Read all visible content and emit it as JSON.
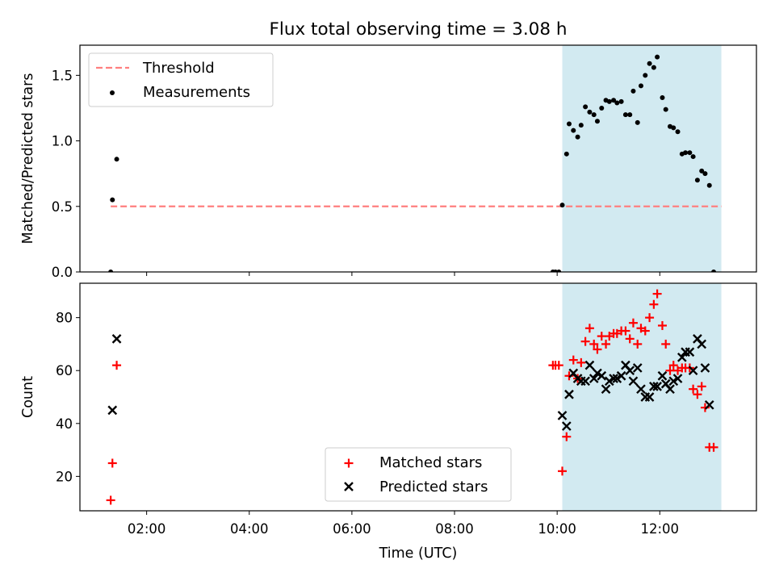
{
  "figure": {
    "title": "Flux total observing time = 3.08 h",
    "colors": {
      "threshold": "#ff7f7f",
      "measurement": "#000000",
      "matched": "#ff0000",
      "predicted": "#000000",
      "shade": "#add8e6"
    }
  },
  "chart_data": [
    {
      "type": "scatter",
      "ylabel": "Matched/Predicted stars",
      "xlabel": "",
      "ylim": [
        0,
        1.73
      ],
      "xlim": [
        "00:42",
        "13:53"
      ],
      "yticks": [
        "0.0",
        "0.5",
        "1.0",
        "1.5"
      ],
      "shaded_interval": [
        "10:06",
        "13:12"
      ],
      "legend_placement": "top-left",
      "threshold": {
        "name": "Threshold",
        "value": 0.5,
        "x": [
          "01:18",
          "13:12"
        ],
        "style": "dashed"
      },
      "series": [
        {
          "name": "Measurements",
          "points": [
            [
              "01:18",
              0.0
            ],
            [
              "01:20",
              0.55
            ],
            [
              "01:25",
              0.86
            ],
            [
              "09:55",
              0.0
            ],
            [
              "09:58",
              0.0
            ],
            [
              "10:02",
              0.0
            ],
            [
              "10:06",
              0.51
            ],
            [
              "10:11",
              0.9
            ],
            [
              "10:14",
              1.13
            ],
            [
              "10:19",
              1.08
            ],
            [
              "10:24",
              1.03
            ],
            [
              "10:28",
              1.12
            ],
            [
              "10:33",
              1.26
            ],
            [
              "10:38",
              1.22
            ],
            [
              "10:43",
              1.2
            ],
            [
              "10:47",
              1.15
            ],
            [
              "10:52",
              1.25
            ],
            [
              "10:57",
              1.31
            ],
            [
              "11:01",
              1.3
            ],
            [
              "11:06",
              1.31
            ],
            [
              "11:10",
              1.29
            ],
            [
              "11:15",
              1.3
            ],
            [
              "11:20",
              1.2
            ],
            [
              "11:25",
              1.2
            ],
            [
              "11:29",
              1.38
            ],
            [
              "11:34",
              1.14
            ],
            [
              "11:38",
              1.42
            ],
            [
              "11:43",
              1.5
            ],
            [
              "11:48",
              1.59
            ],
            [
              "11:53",
              1.56
            ],
            [
              "11:57",
              1.64
            ],
            [
              "12:03",
              1.33
            ],
            [
              "12:07",
              1.24
            ],
            [
              "12:12",
              1.11
            ],
            [
              "12:16",
              1.1
            ],
            [
              "12:21",
              1.07
            ],
            [
              "12:26",
              0.9
            ],
            [
              "12:30",
              0.91
            ],
            [
              "12:35",
              0.91
            ],
            [
              "12:39",
              0.88
            ],
            [
              "12:44",
              0.7
            ],
            [
              "12:49",
              0.77
            ],
            [
              "12:53",
              0.75
            ],
            [
              "12:58",
              0.66
            ],
            [
              "13:03",
              0.0
            ]
          ]
        }
      ]
    },
    {
      "type": "scatter",
      "ylabel": "Count",
      "xlabel": "Time (UTC)",
      "ylim": [
        7,
        93
      ],
      "xlim": [
        "00:42",
        "13:53"
      ],
      "yticks": [
        "20",
        "40",
        "60",
        "80"
      ],
      "xticks": [
        "02:00",
        "04:00",
        "06:00",
        "08:00",
        "10:00",
        "12:00"
      ],
      "shaded_interval": [
        "10:06",
        "13:12"
      ],
      "legend_placement": "lower-center",
      "series": [
        {
          "name": "Matched stars",
          "marker": "+",
          "points": [
            [
              "01:18",
              11
            ],
            [
              "01:20",
              25
            ],
            [
              "01:25",
              62
            ],
            [
              "09:55",
              62
            ],
            [
              "09:58",
              62
            ],
            [
              "10:02",
              62
            ],
            [
              "10:06",
              22
            ],
            [
              "10:11",
              35
            ],
            [
              "10:14",
              58
            ],
            [
              "10:19",
              64
            ],
            [
              "10:24",
              57
            ],
            [
              "10:28",
              63
            ],
            [
              "10:33",
              71
            ],
            [
              "10:38",
              76
            ],
            [
              "10:43",
              70
            ],
            [
              "10:47",
              68
            ],
            [
              "10:52",
              73
            ],
            [
              "10:57",
              70
            ],
            [
              "11:01",
              73
            ],
            [
              "11:06",
              74
            ],
            [
              "11:10",
              74
            ],
            [
              "11:15",
              75
            ],
            [
              "11:20",
              75
            ],
            [
              "11:25",
              72
            ],
            [
              "11:29",
              78
            ],
            [
              "11:34",
              70
            ],
            [
              "11:38",
              76
            ],
            [
              "11:43",
              75
            ],
            [
              "11:48",
              80
            ],
            [
              "11:53",
              85
            ],
            [
              "11:57",
              89
            ],
            [
              "12:03",
              77
            ],
            [
              "12:07",
              70
            ],
            [
              "12:12",
              60
            ],
            [
              "12:16",
              62
            ],
            [
              "12:21",
              60
            ],
            [
              "12:26",
              61
            ],
            [
              "12:30",
              61
            ],
            [
              "12:35",
              61
            ],
            [
              "12:39",
              53
            ],
            [
              "12:44",
              51
            ],
            [
              "12:49",
              54
            ],
            [
              "12:53",
              46
            ],
            [
              "12:58",
              31
            ],
            [
              "13:03",
              31
            ]
          ]
        },
        {
          "name": "Predicted stars",
          "marker": "x",
          "points": [
            [
              "01:20",
              45
            ],
            [
              "01:25",
              72
            ],
            [
              "10:06",
              43
            ],
            [
              "10:11",
              39
            ],
            [
              "10:14",
              51
            ],
            [
              "10:19",
              59
            ],
            [
              "10:24",
              57
            ],
            [
              "10:28",
              56
            ],
            [
              "10:33",
              56
            ],
            [
              "10:38",
              62
            ],
            [
              "10:43",
              57
            ],
            [
              "10:47",
              59
            ],
            [
              "10:52",
              58
            ],
            [
              "10:57",
              53
            ],
            [
              "11:01",
              56
            ],
            [
              "11:06",
              57
            ],
            [
              "11:10",
              57
            ],
            [
              "11:15",
              58
            ],
            [
              "11:20",
              62
            ],
            [
              "11:25",
              60
            ],
            [
              "11:29",
              56
            ],
            [
              "11:34",
              61
            ],
            [
              "11:38",
              53
            ],
            [
              "11:43",
              50
            ],
            [
              "11:48",
              50
            ],
            [
              "11:53",
              54
            ],
            [
              "11:57",
              54
            ],
            [
              "12:03",
              58
            ],
            [
              "12:07",
              55
            ],
            [
              "12:12",
              53
            ],
            [
              "12:16",
              56
            ],
            [
              "12:21",
              57
            ],
            [
              "12:26",
              65
            ],
            [
              "12:30",
              67
            ],
            [
              "12:35",
              67
            ],
            [
              "12:39",
              60
            ],
            [
              "12:44",
              72
            ],
            [
              "12:49",
              70
            ],
            [
              "12:53",
              61
            ],
            [
              "12:58",
              47
            ]
          ]
        }
      ]
    }
  ]
}
